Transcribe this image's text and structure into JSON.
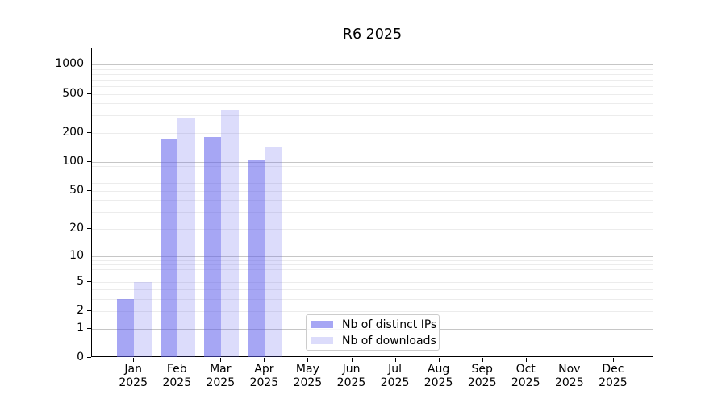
{
  "chart_data": {
    "type": "bar",
    "title": "R6 2025",
    "categories": [
      {
        "month": "Jan",
        "year": "2025"
      },
      {
        "month": "Feb",
        "year": "2025"
      },
      {
        "month": "Mar",
        "year": "2025"
      },
      {
        "month": "Apr",
        "year": "2025"
      },
      {
        "month": "May",
        "year": "2025"
      },
      {
        "month": "Jun",
        "year": "2025"
      },
      {
        "month": "Jul",
        "year": "2025"
      },
      {
        "month": "Aug",
        "year": "2025"
      },
      {
        "month": "Sep",
        "year": "2025"
      },
      {
        "month": "Oct",
        "year": "2025"
      },
      {
        "month": "Nov",
        "year": "2025"
      },
      {
        "month": "Dec",
        "year": "2025"
      }
    ],
    "series": [
      {
        "name": "Nb of distinct IPs",
        "color": "rgba(90,90,235,0.54)",
        "values": [
          3,
          175,
          182,
          103,
          0,
          0,
          0,
          0,
          0,
          0,
          0,
          0
        ]
      },
      {
        "name": "Nb of downloads",
        "color": "rgba(90,90,235,0.21)",
        "values": [
          5,
          280,
          340,
          140,
          0,
          0,
          0,
          0,
          0,
          0,
          0,
          0
        ]
      }
    ],
    "xlabel": "",
    "ylabel": "",
    "y_scale": "log10(1+y)",
    "y_ticks": [
      0,
      1,
      2,
      5,
      10,
      20,
      50,
      100,
      200,
      500,
      1000
    ],
    "y_major_gridlines": [
      1,
      10,
      100,
      1000
    ],
    "ylim": [
      0,
      1400
    ],
    "grid": true,
    "legend_position": "inside-bottom-center",
    "colors": {
      "bar_base": "#5a5aeb",
      "major_grid": "#c6c6c6",
      "minor_grid": "#ececec",
      "axis": "#000000"
    }
  }
}
